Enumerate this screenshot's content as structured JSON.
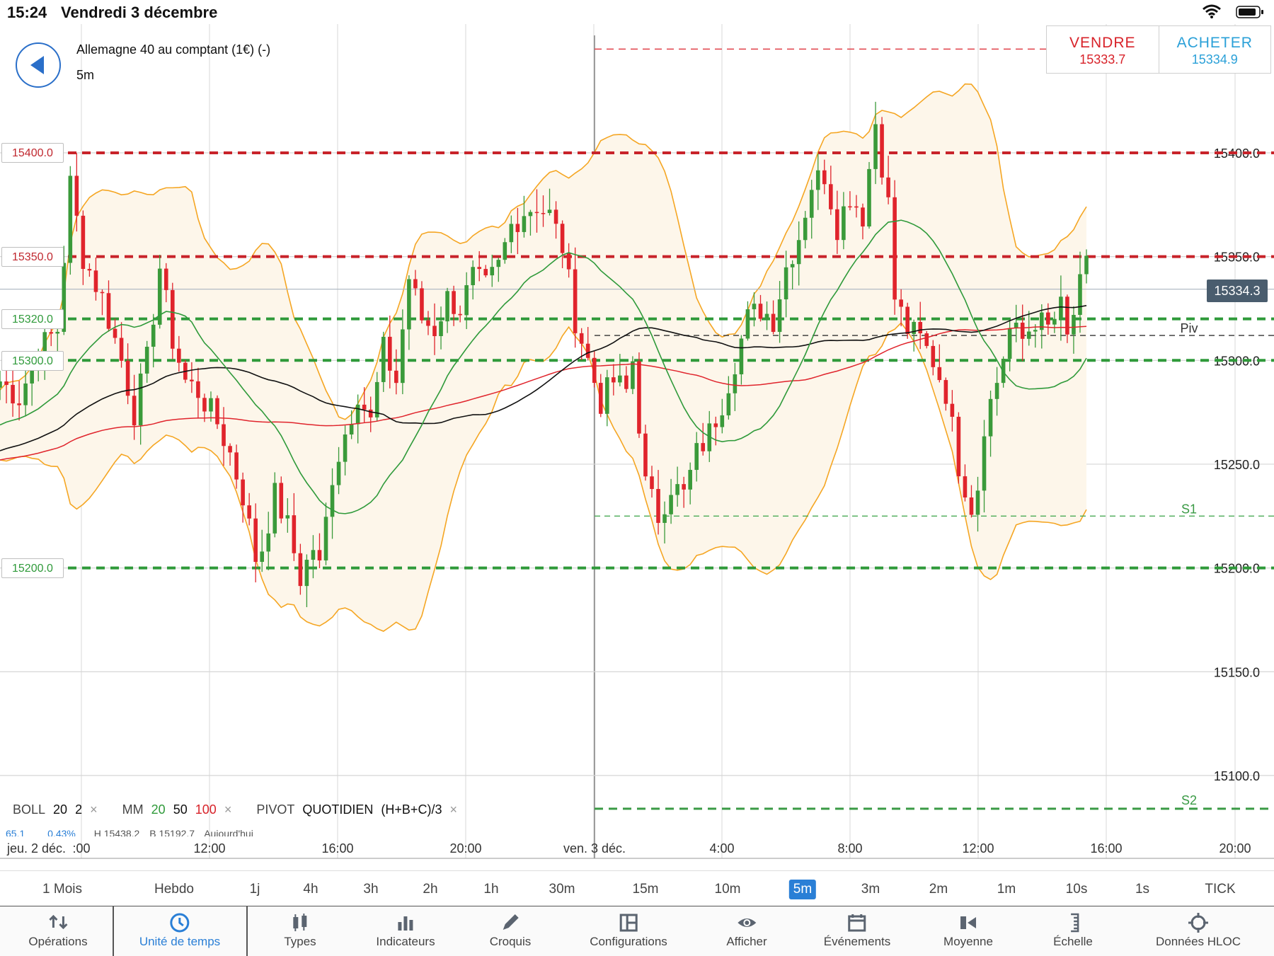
{
  "status": {
    "time": "15:24",
    "date": "Vendredi 3 décembre"
  },
  "instrument": {
    "name": "Allemagne 40 au comptant (1€) (-)",
    "timeframe": "5m"
  },
  "trade": {
    "sell_label": "VENDRE",
    "sell_price": "15333.7",
    "buy_label": "ACHETER",
    "buy_price": "15334.9"
  },
  "levels": {
    "l15400": "15400.0",
    "l15350": "15350.0",
    "l15320": "15320.0",
    "l15300": "15300.0",
    "l15200": "15200.0"
  },
  "current_price": "15334.3",
  "pivot_labels": {
    "piv": "Piv",
    "s1": "S1",
    "s2": "S2"
  },
  "colors": {
    "resistance": "#c8232a",
    "support": "#2f9a3a",
    "accent": "#2a7fd6",
    "bollinger": "#f5a623",
    "ma20": "#2f9a3a",
    "ma50": "#111111",
    "ma100": "#e0242c"
  },
  "indicators": {
    "boll": {
      "name": "BOLL",
      "p1": "20",
      "p2": "2"
    },
    "mm": {
      "name": "MM",
      "p1": "20",
      "p2": "50",
      "p3": "100"
    },
    "pivot": {
      "name": "PIVOT",
      "type": "QUOTIDIEN",
      "formula": "(H+B+C)/3"
    },
    "stats": {
      "a": "65.1",
      "b": "0.43%",
      "h": "H 15438.2",
      "l": "B 15192.7",
      "t": "Aujourd'hui"
    },
    "remove": "×"
  },
  "chart_data": {
    "type": "candlestick",
    "title": "",
    "ylim": [
      15085,
      15440
    ],
    "yticks": [
      "15400.0",
      "15350.0",
      "15300.0",
      "15250.0",
      "15200.0",
      "15150.0",
      "15100.0"
    ],
    "yvalues": [
      15400,
      15350,
      15300,
      15250,
      15200,
      15150,
      15100
    ],
    "xticks": [
      "jeu. 2 déc.",
      ":00",
      "12:00",
      "16:00",
      "20:00",
      "ven. 3 déc.",
      "4:00",
      "8:00",
      "12:00",
      "16:00",
      "20:00"
    ],
    "resistance": [
      15400,
      15350
    ],
    "support": [
      15320,
      15300,
      15200
    ],
    "pivots": {
      "piv": 15312,
      "s1": 15225,
      "s2": 15084,
      "r1": 15450
    },
    "close_path": [
      [
        0,
        15290
      ],
      [
        3,
        15282
      ],
      [
        6,
        15305
      ],
      [
        9,
        15315
      ],
      [
        11,
        15385
      ],
      [
        13,
        15350
      ],
      [
        16,
        15330
      ],
      [
        19,
        15300
      ],
      [
        21,
        15275
      ],
      [
        23,
        15300
      ],
      [
        25,
        15345
      ],
      [
        27,
        15310
      ],
      [
        29,
        15290
      ],
      [
        31,
        15285
      ],
      [
        34,
        15270
      ],
      [
        36,
        15255
      ],
      [
        38,
        15235
      ],
      [
        40,
        15205
      ],
      [
        41,
        15210
      ],
      [
        43,
        15235
      ],
      [
        45,
        15220
      ],
      [
        47,
        15195
      ],
      [
        49,
        15210
      ],
      [
        50,
        15200
      ],
      [
        52,
        15245
      ],
      [
        54,
        15265
      ],
      [
        56,
        15285
      ],
      [
        58,
        15270
      ],
      [
        60,
        15305
      ],
      [
        62,
        15290
      ],
      [
        64,
        15340
      ],
      [
        66,
        15320
      ],
      [
        68,
        15315
      ],
      [
        70,
        15330
      ],
      [
        72,
        15325
      ],
      [
        74,
        15340
      ],
      [
        76,
        15335
      ],
      [
        78,
        15345
      ],
      [
        80,
        15365
      ],
      [
        82,
        15372
      ],
      [
        84,
        15375
      ],
      [
        86,
        15370
      ],
      [
        88,
        15355
      ],
      [
        90,
        15320
      ],
      [
        92,
        15300
      ],
      [
        94,
        15280
      ],
      [
        96,
        15290
      ],
      [
        98,
        15285
      ],
      [
        99,
        15300
      ],
      [
        101,
        15240
      ],
      [
        103,
        15225
      ],
      [
        105,
        15240
      ],
      [
        107,
        15235
      ],
      [
        109,
        15255
      ],
      [
        111,
        15265
      ],
      [
        113,
        15280
      ],
      [
        115,
        15300
      ],
      [
        117,
        15320
      ],
      [
        119,
        15325
      ],
      [
        121,
        15320
      ],
      [
        123,
        15345
      ],
      [
        125,
        15360
      ],
      [
        127,
        15385
      ],
      [
        129,
        15390
      ],
      [
        131,
        15365
      ],
      [
        133,
        15380
      ],
      [
        135,
        15370
      ],
      [
        137,
        15415
      ],
      [
        138,
        15395
      ],
      [
        139,
        15375
      ],
      [
        140,
        15330
      ],
      [
        142,
        15315
      ],
      [
        144,
        15310
      ],
      [
        146,
        15300
      ],
      [
        148,
        15285
      ],
      [
        150,
        15250
      ],
      [
        152,
        15230
      ],
      [
        153,
        15240
      ],
      [
        154,
        15270
      ],
      [
        156,
        15290
      ],
      [
        158,
        15315
      ],
      [
        160,
        15310
      ],
      [
        162,
        15320
      ],
      [
        164,
        15315
      ],
      [
        166,
        15325
      ],
      [
        167,
        15310
      ],
      [
        169,
        15335
      ],
      [
        170,
        15345
      ]
    ],
    "series": [
      {
        "name": "BOLL 20 2",
        "type": "band"
      },
      {
        "name": "MM 20",
        "type": "line"
      },
      {
        "name": "MM 50",
        "type": "line"
      },
      {
        "name": "MM 100",
        "type": "line"
      }
    ]
  },
  "timeframes": [
    "1 Mois",
    "Hebdo",
    "1j",
    "4h",
    "3h",
    "2h",
    "1h",
    "30m",
    "15m",
    "10m",
    "5m",
    "3m",
    "2m",
    "1m",
    "10s",
    "1s",
    "TICK"
  ],
  "timeframe_active": "5m",
  "toolbar": [
    "Opérations",
    "Unité de temps",
    "Types",
    "Indicateurs",
    "Croquis",
    "Configurations",
    "Afficher",
    "Événements",
    "Moyenne",
    "Échelle",
    "Données HLOC"
  ],
  "toolbar_active": "Unité de temps"
}
